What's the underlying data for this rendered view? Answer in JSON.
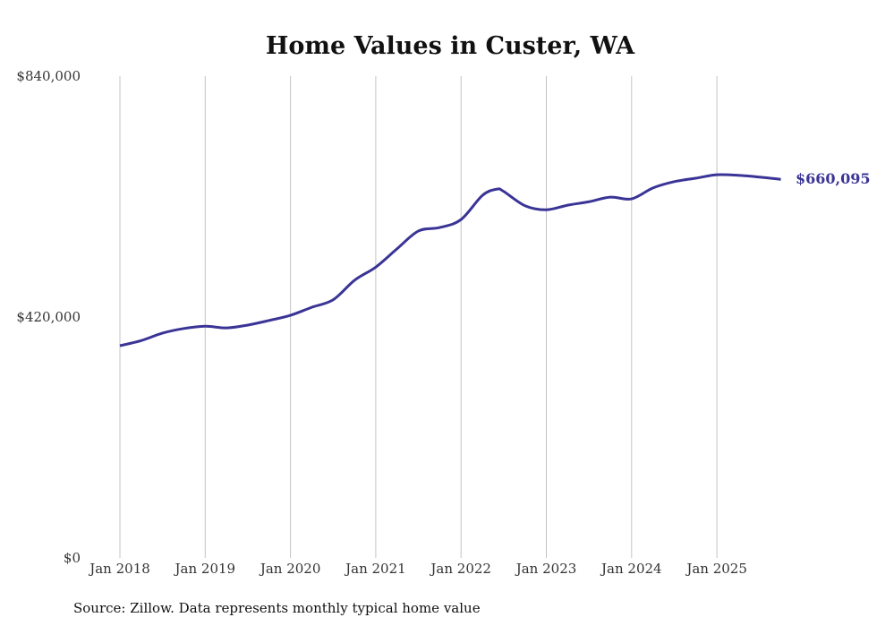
{
  "chart_data": {
    "type": "line",
    "title": "Home Values in Custer, WA",
    "xlabel": "",
    "ylabel": "",
    "ylim": [
      0,
      840000
    ],
    "xlim": [
      2018,
      2025.75
    ],
    "y_ticks": [
      0,
      420000,
      840000
    ],
    "y_tick_labels": [
      "$0",
      "$420,000",
      "$840,000"
    ],
    "x_ticks": [
      2018,
      2019,
      2020,
      2021,
      2022,
      2023,
      2024,
      2025
    ],
    "x_tick_labels": [
      "Jan 2018",
      "Jan 2019",
      "Jan 2020",
      "Jan 2021",
      "Jan 2022",
      "Jan 2023",
      "Jan 2024",
      "Jan 2025"
    ],
    "grid": "vertical",
    "series": [
      {
        "name": "Typical home value",
        "color": "#3a3496",
        "x": [
          2018,
          2018.25,
          2018.5,
          2018.75,
          2019,
          2019.25,
          2019.5,
          2019.75,
          2020,
          2020.25,
          2020.5,
          2020.75,
          2021,
          2021.25,
          2021.5,
          2021.75,
          2022,
          2022.25,
          2022.42,
          2022.5,
          2022.75,
          2023,
          2023.25,
          2023.5,
          2023.75,
          2024,
          2024.25,
          2024.5,
          2024.75,
          2025,
          2025.25,
          2025.5,
          2025.75
        ],
        "values": [
          370000,
          379000,
          392000,
          400000,
          404000,
          401000,
          406000,
          414000,
          423000,
          437000,
          450000,
          484000,
          507000,
          539000,
          570000,
          576000,
          590000,
          632000,
          643000,
          639000,
          614000,
          607000,
          615000,
          621000,
          629000,
          626000,
          645000,
          656000,
          662000,
          668000,
          667000,
          664000,
          660095
        ]
      }
    ],
    "end_label": "$660,095",
    "source": "Source: Zillow. Data represents monthly typical home value"
  }
}
